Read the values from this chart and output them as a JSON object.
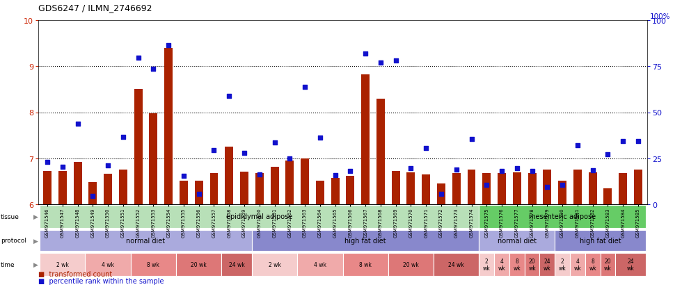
{
  "title": "GDS6247 / ILMN_2746692",
  "samples": [
    "GSM971546",
    "GSM971547",
    "GSM971548",
    "GSM971549",
    "GSM971550",
    "GSM971551",
    "GSM971552",
    "GSM971553",
    "GSM971554",
    "GSM971555",
    "GSM971556",
    "GSM971557",
    "GSM971558",
    "GSM971559",
    "GSM971560",
    "GSM971561",
    "GSM971562",
    "GSM971563",
    "GSM971564",
    "GSM971565",
    "GSM971566",
    "GSM971567",
    "GSM971568",
    "GSM971569",
    "GSM971570",
    "GSM971571",
    "GSM971572",
    "GSM971573",
    "GSM971574",
    "GSM971575",
    "GSM971576",
    "GSM971577",
    "GSM971578",
    "GSM971579",
    "GSM971580",
    "GSM971581",
    "GSM971582",
    "GSM971583",
    "GSM971584",
    "GSM971585"
  ],
  "bar_values": [
    6.72,
    6.73,
    6.92,
    6.48,
    6.67,
    6.75,
    8.51,
    7.98,
    9.4,
    6.52,
    6.52,
    6.68,
    7.25,
    6.71,
    6.68,
    6.82,
    6.95,
    6.99,
    6.52,
    6.58,
    6.62,
    8.82,
    8.29,
    6.72,
    6.69,
    6.65,
    6.45,
    6.68,
    6.76,
    6.68,
    6.68,
    6.7,
    6.68,
    6.75,
    6.52,
    6.76,
    6.69,
    6.35,
    6.68,
    6.75
  ],
  "dot_values": [
    6.92,
    6.82,
    7.75,
    6.18,
    6.85,
    7.46,
    9.18,
    8.95,
    9.45,
    6.62,
    6.22,
    7.18,
    8.35,
    7.12,
    6.65,
    7.35,
    7.0,
    8.55,
    7.45,
    6.64,
    6.72,
    9.28,
    9.08,
    9.12,
    6.78,
    7.22,
    6.22,
    6.75,
    7.42,
    6.42,
    6.72,
    6.78,
    6.72,
    6.38,
    6.42,
    7.28,
    6.74,
    7.08,
    7.38,
    7.38
  ],
  "ylim_left": [
    6.0,
    10.0
  ],
  "ylim_right": [
    0,
    100
  ],
  "yticks_left": [
    6,
    7,
    8,
    9,
    10
  ],
  "yticks_right": [
    0,
    25,
    50,
    75,
    100
  ],
  "bar_color": "#aa2200",
  "dot_color": "#1111cc",
  "bar_bottom": 6.0,
  "tissue_groups": [
    {
      "label": "epididymal adipose",
      "start": 0,
      "end": 29,
      "color": "#b8e0b8"
    },
    {
      "label": "mesenteric adipose",
      "start": 29,
      "end": 40,
      "color": "#66cc66"
    }
  ],
  "protocol_groups": [
    {
      "label": "normal diet",
      "start": 0,
      "end": 14,
      "color": "#aaaadd"
    },
    {
      "label": "high fat diet",
      "start": 14,
      "end": 29,
      "color": "#8888cc"
    },
    {
      "label": "normal diet",
      "start": 29,
      "end": 34,
      "color": "#aaaadd"
    },
    {
      "label": "high fat diet",
      "start": 34,
      "end": 40,
      "color": "#8888cc"
    }
  ],
  "time_groups": [
    {
      "label": "2 wk",
      "start": 0,
      "end": 3,
      "color": "#f5cccc"
    },
    {
      "label": "4 wk",
      "start": 3,
      "end": 6,
      "color": "#f0aaaa"
    },
    {
      "label": "8 wk",
      "start": 6,
      "end": 9,
      "color": "#e88888"
    },
    {
      "label": "20 wk",
      "start": 9,
      "end": 12,
      "color": "#dd7777"
    },
    {
      "label": "24 wk",
      "start": 12,
      "end": 14,
      "color": "#cc6666"
    },
    {
      "label": "2 wk",
      "start": 14,
      "end": 17,
      "color": "#f5cccc"
    },
    {
      "label": "4 wk",
      "start": 17,
      "end": 20,
      "color": "#f0aaaa"
    },
    {
      "label": "8 wk",
      "start": 20,
      "end": 23,
      "color": "#e88888"
    },
    {
      "label": "20 wk",
      "start": 23,
      "end": 26,
      "color": "#dd7777"
    },
    {
      "label": "24 wk",
      "start": 26,
      "end": 29,
      "color": "#cc6666"
    },
    {
      "label": "2\nwk",
      "start": 29,
      "end": 30,
      "color": "#f5cccc"
    },
    {
      "label": "4\nwk",
      "start": 30,
      "end": 31,
      "color": "#f0aaaa"
    },
    {
      "label": "8\nwk",
      "start": 31,
      "end": 32,
      "color": "#e88888"
    },
    {
      "label": "20\nwk",
      "start": 32,
      "end": 33,
      "color": "#dd7777"
    },
    {
      "label": "24\nwk",
      "start": 33,
      "end": 34,
      "color": "#cc6666"
    },
    {
      "label": "2\nwk",
      "start": 34,
      "end": 35,
      "color": "#f5cccc"
    },
    {
      "label": "4\nwk",
      "start": 35,
      "end": 36,
      "color": "#f0aaaa"
    },
    {
      "label": "8\nwk",
      "start": 36,
      "end": 37,
      "color": "#e88888"
    },
    {
      "label": "20\nwk",
      "start": 37,
      "end": 38,
      "color": "#dd7777"
    },
    {
      "label": "24\nwk",
      "start": 38,
      "end": 40,
      "color": "#cc6666"
    }
  ],
  "grid_yticks": [
    7,
    8,
    9
  ],
  "left_yaxis_color": "#cc2200",
  "right_yaxis_color": "#1111cc",
  "xtick_bg": "#cccccc"
}
